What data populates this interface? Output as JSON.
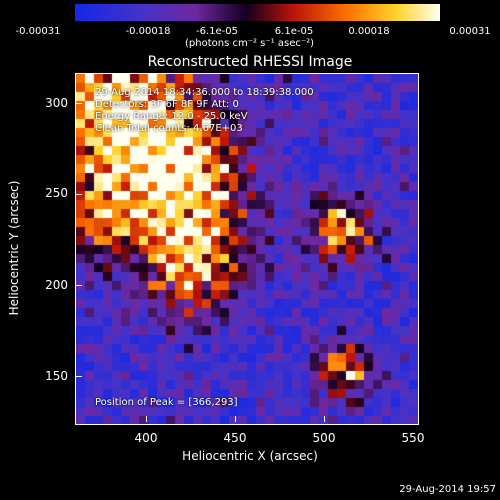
{
  "colorbar": {
    "ticks": [
      "-0.00031",
      "-0.00018",
      "-6.1e-05",
      "6.1e-05",
      "0.00018",
      "0.00031"
    ],
    "units_label": "(photons cm⁻² s⁻¹ asec⁻²)"
  },
  "plot": {
    "title": "Reconstructed RHESSI Image",
    "annotations": {
      "time_range": "29-Aug-2014 18:34:36.000 to 18:39:38.000",
      "detectors": "Detectors: 3F 6F 8F 9F  Att: 0",
      "energy_range": "Energy Range: 12.0 - 25.0 keV",
      "algorithm": "Clean     Total counts: 4.67E+03",
      "peak": "Position of Peak = [366,293]"
    },
    "x_ticks": [
      "400",
      "450",
      "500",
      "550"
    ],
    "y_ticks": [
      "300",
      "250",
      "200",
      "150"
    ],
    "xlabel": "Heliocentric X (arcsec)",
    "ylabel": "Heliocentric Y (arcsec)",
    "xlim": [
      360,
      550
    ],
    "ylim": [
      122,
      318
    ]
  },
  "timestamp": "29-Aug-2014 19:57"
}
